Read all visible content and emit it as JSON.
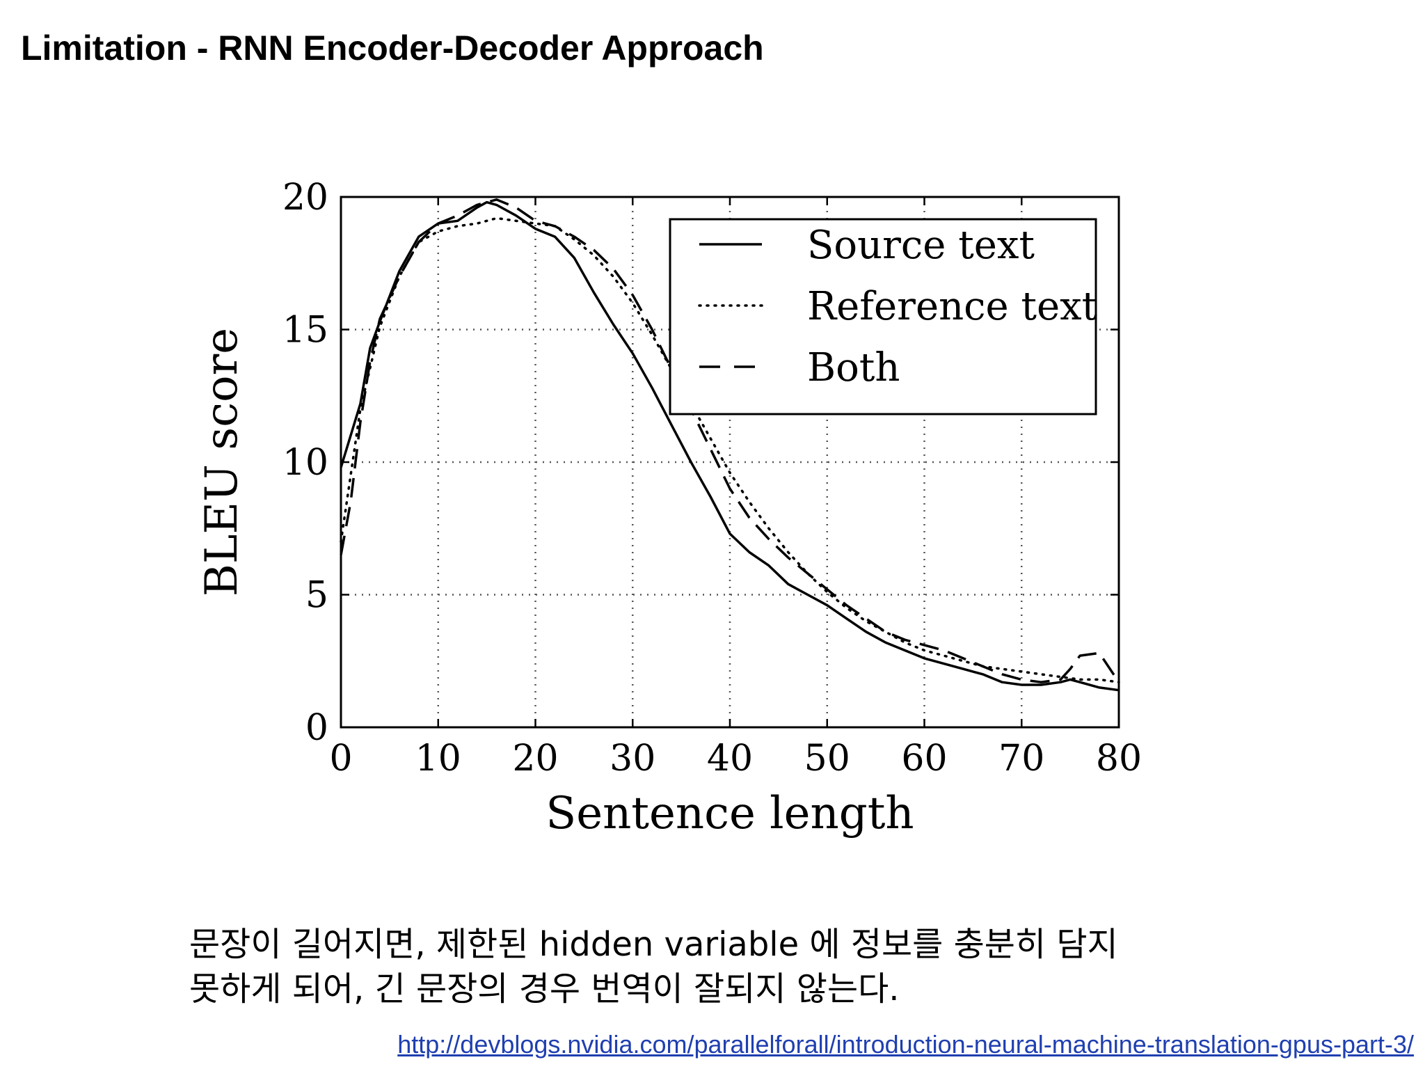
{
  "slide": {
    "title": "Limitation - RNN Encoder-Decoder Approach",
    "caption_line1": "문장이 길어지면, 제한된 hidden variable 에 정보를 충분히 담지",
    "caption_line2": "못하게 되어, 긴 문장의 경우 번역이 잘되지 않는다.",
    "source_link": "http://devblogs.nvidia.com/parallelforall/introduction-neural-machine-translation-gpus-part-3/"
  },
  "colors": {
    "text": "#000000",
    "link": "#1f3fb0",
    "grid": "#555555"
  },
  "chart_data": {
    "type": "line",
    "title": "",
    "xlabel": "Sentence length",
    "ylabel": "BLEU score",
    "xlim": [
      0,
      80
    ],
    "ylim": [
      0,
      20
    ],
    "xticks": [
      0,
      10,
      20,
      30,
      40,
      50,
      60,
      70,
      80
    ],
    "yticks": [
      0,
      5,
      10,
      15,
      20
    ],
    "grid": true,
    "legend_position": "top-right",
    "series": [
      {
        "name": "Source text",
        "style": "solid",
        "x": [
          0,
          2,
          3,
          4,
          6,
          8,
          10,
          12,
          14,
          15,
          16,
          18,
          20,
          22,
          24,
          26,
          28,
          30,
          32,
          34,
          36,
          38,
          40,
          42,
          44,
          46,
          48,
          50,
          52,
          54,
          56,
          58,
          60,
          62,
          64,
          66,
          68,
          70,
          72,
          74,
          75,
          76,
          78,
          80
        ],
        "y": [
          9.8,
          12.2,
          14.3,
          15.3,
          17.2,
          18.5,
          19.0,
          19.1,
          19.6,
          19.8,
          19.7,
          19.3,
          18.8,
          18.5,
          17.7,
          16.4,
          15.2,
          14.1,
          12.8,
          11.4,
          10.0,
          8.7,
          7.3,
          6.6,
          6.1,
          5.4,
          5.0,
          4.6,
          4.1,
          3.6,
          3.2,
          2.9,
          2.6,
          2.4,
          2.2,
          2.0,
          1.7,
          1.6,
          1.6,
          1.7,
          1.8,
          1.7,
          1.5,
          1.4
        ]
      },
      {
        "name": "Reference text",
        "style": "dotted",
        "x": [
          0,
          2,
          4,
          6,
          8,
          10,
          12,
          14,
          16,
          18,
          20,
          22,
          24,
          26,
          28,
          30,
          32,
          34,
          36,
          38,
          40,
          42,
          44,
          46,
          48,
          50,
          52,
          54,
          56,
          58,
          60,
          62,
          64,
          66,
          68,
          70,
          72,
          74,
          76,
          78,
          80
        ],
        "y": [
          7.0,
          12.0,
          15.1,
          17.0,
          18.3,
          18.7,
          18.9,
          19.0,
          19.2,
          19.1,
          19.0,
          18.9,
          18.4,
          17.8,
          17.0,
          16.0,
          14.8,
          13.5,
          12.2,
          10.9,
          9.6,
          8.5,
          7.5,
          6.6,
          5.8,
          5.1,
          4.5,
          4.0,
          3.6,
          3.2,
          2.9,
          2.7,
          2.5,
          2.3,
          2.2,
          2.1,
          2.0,
          1.9,
          1.8,
          1.8,
          1.7
        ]
      },
      {
        "name": "Both",
        "style": "dashed",
        "x": [
          0,
          1,
          2,
          3,
          4,
          6,
          8,
          10,
          12,
          14,
          16,
          18,
          20,
          22,
          24,
          26,
          28,
          30,
          32,
          34,
          36,
          38,
          40,
          42,
          44,
          46,
          48,
          50,
          52,
          54,
          56,
          58,
          60,
          62,
          64,
          66,
          68,
          70,
          72,
          74,
          75,
          76,
          78,
          80
        ],
        "y": [
          6.5,
          8.5,
          11.5,
          13.8,
          15.4,
          17.0,
          18.3,
          19.0,
          19.3,
          19.7,
          19.9,
          19.6,
          19.1,
          18.9,
          18.5,
          18.0,
          17.3,
          16.3,
          15.0,
          13.5,
          12.0,
          10.5,
          9.0,
          7.9,
          7.1,
          6.4,
          5.8,
          5.2,
          4.6,
          4.1,
          3.6,
          3.3,
          3.1,
          2.9,
          2.6,
          2.3,
          2.0,
          1.8,
          1.7,
          1.8,
          2.2,
          2.7,
          2.8,
          1.7
        ]
      }
    ]
  }
}
